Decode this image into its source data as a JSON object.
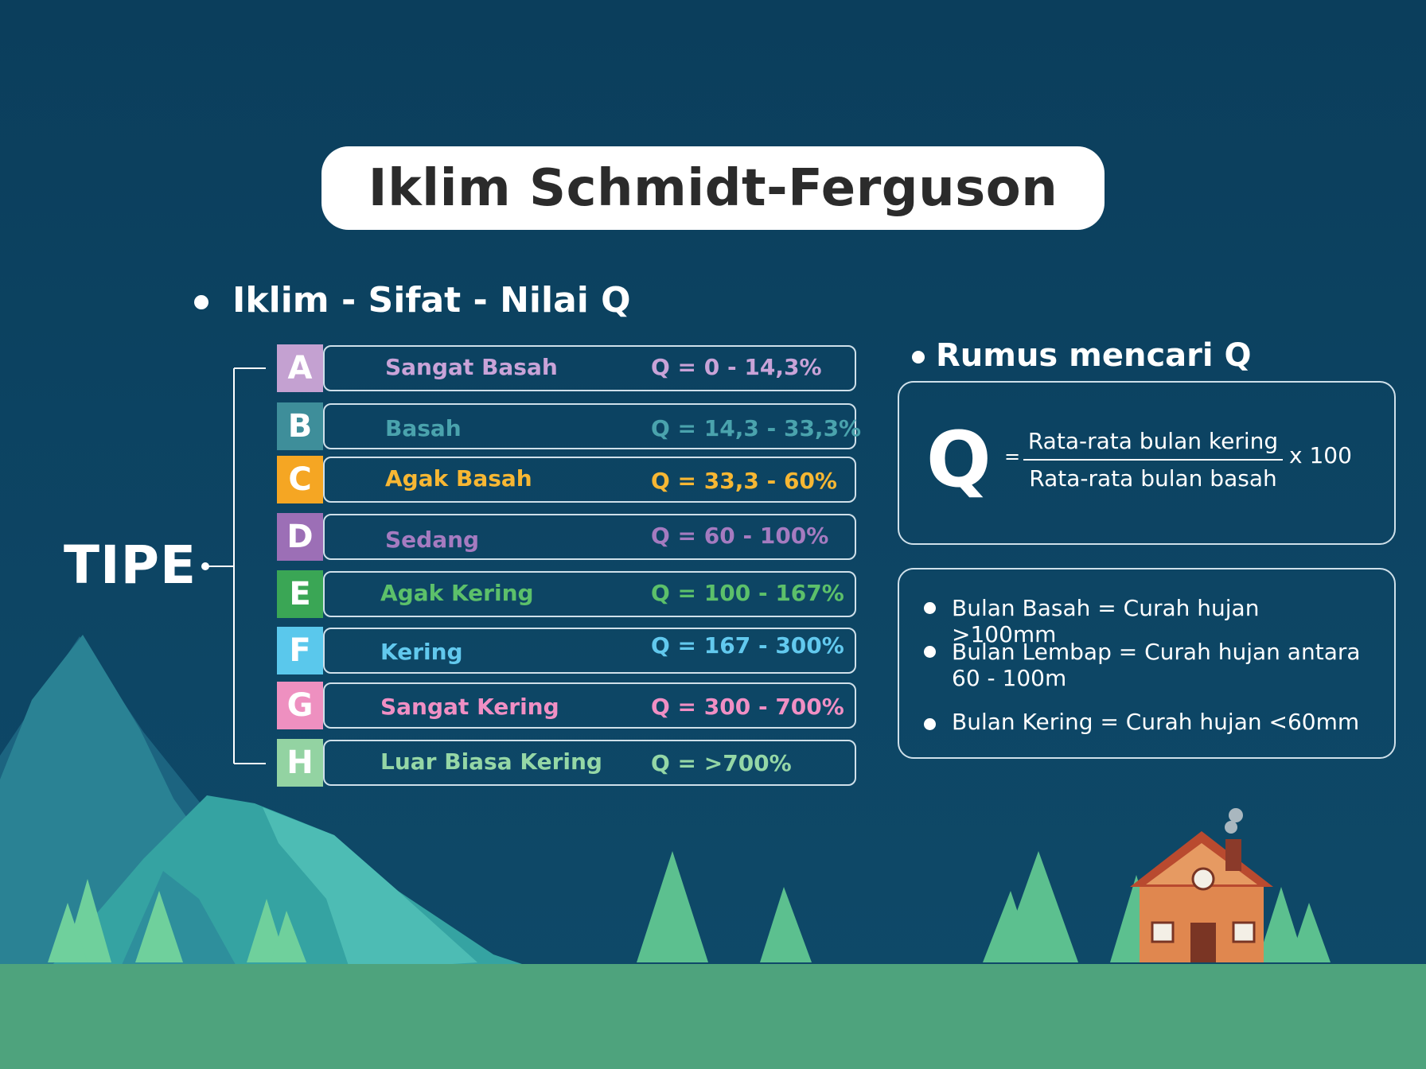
{
  "title": "Iklim Schmidt-Ferguson",
  "left_section": {
    "heading": "Iklim - Sifat - Nilai Q",
    "group_label": "TIPE",
    "types": [
      {
        "letter": "A",
        "name": "Sangat Basah",
        "q": "Q = 0 - 14,3%",
        "color": "#c4a1d1",
        "text_color": "#c9a3d8"
      },
      {
        "letter": "B",
        "name": "Basah",
        "q": "Q = 14,3 - 33,3%",
        "color": "#3e8e9a",
        "text_color": "#4aa3ad"
      },
      {
        "letter": "C",
        "name": "Agak Basah",
        "q": "Q = 33,3 - 60%",
        "color": "#f5a623",
        "text_color": "#f7b733"
      },
      {
        "letter": "D",
        "name": "Sedang",
        "q": "Q = 60 - 100%",
        "color": "#9c6fb6",
        "text_color": "#a57bc0"
      },
      {
        "letter": "E",
        "name": "Agak Kering",
        "q": "Q = 100 - 167%",
        "color": "#3aa655",
        "text_color": "#5cc06a"
      },
      {
        "letter": "F",
        "name": "Kering",
        "q": "Q = 167 - 300%",
        "color": "#5ac8ec",
        "text_color": "#62c9ee"
      },
      {
        "letter": "G",
        "name": "Sangat Kering",
        "q": "Q = 300 - 700%",
        "color": "#ee90c0",
        "text_color": "#f08fc4"
      },
      {
        "letter": "H",
        "name": "Luar  Biasa Kering",
        "q": "Q = >700%",
        "color": "#93d3a2",
        "text_color": "#95d7a6"
      }
    ]
  },
  "right_section": {
    "heading": "Rumus mencari Q",
    "formula": {
      "symbol": "Q",
      "equals": "=",
      "numerator": "Rata-rata bulan kering",
      "denominator": "Rata-rata bulan basah",
      "multiplier": "x 100"
    },
    "notes": [
      "Bulan Basah = Curah hujan >100mm",
      "Bulan Lembap = Curah hujan antara 60 - 100m",
      "Bulan Kering = Curah hujan <60mm"
    ]
  },
  "colors": {
    "background": "#0d4362",
    "ground": "#4ea37d",
    "mountain_dark": "#1f6f86",
    "mountain_light": "#3aa7a3",
    "tree": "#5dc08f",
    "tree_light": "#8fd8a6",
    "house_wall": "#e0874f",
    "house_roof": "#b94a2f"
  }
}
